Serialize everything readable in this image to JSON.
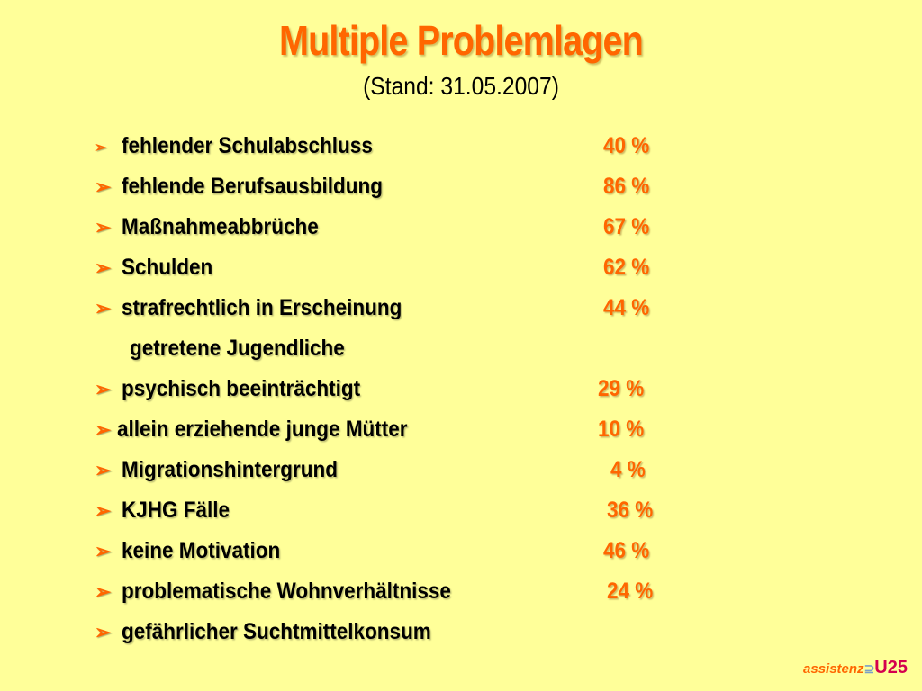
{
  "slide": {
    "title": "Multiple Problemlagen",
    "subtitle": "(Stand: 31.05.2007)",
    "bullet_glyph": "➢",
    "items": [
      {
        "label": "fehlender Schulabschluss",
        "value": "40 %"
      },
      {
        "label": "fehlende Berufsausbildung",
        "value": "86 %"
      },
      {
        "label": "Maßnahmeabbrüche",
        "value": "67 %"
      },
      {
        "label": "Schulden",
        "value": "62 %"
      },
      {
        "label": "strafrechtlich in Erscheinung",
        "value": "44 %"
      },
      {
        "label": "getretene Jugendliche",
        "value": ""
      },
      {
        "label": "psychisch beeinträchtigt",
        "value": "29 %"
      },
      {
        "label": "allein erziehende junge Mütter",
        "value": "10 %"
      },
      {
        "label": "Migrationshintergrund",
        "value": "4 %"
      },
      {
        "label": "KJHG Fälle",
        "value": "36 %"
      },
      {
        "label": "keine Motivation",
        "value": "46 %"
      },
      {
        "label": "problematische Wohnverhältnisse",
        "value": "24 %"
      },
      {
        "label": "gefährlicher Suchtmittelkonsum",
        "value": ""
      }
    ],
    "logo": {
      "part1": "assistenz",
      "symbol": "⊇",
      "part2": "U25"
    },
    "colors": {
      "background": "#ffff99",
      "accent": "#ff6600",
      "text": "#000000",
      "logo_red": "#d4004e"
    }
  }
}
